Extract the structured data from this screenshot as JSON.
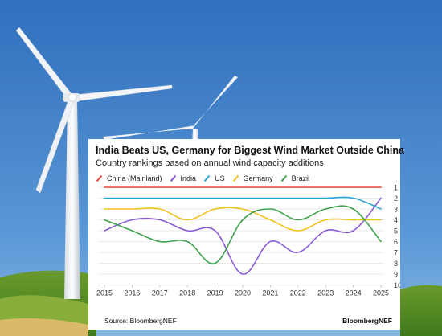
{
  "header": {
    "title": "India Beats US, Germany for Biggest Wind Market Outside China",
    "subtitle": "Country rankings based on annual wind capacity additions"
  },
  "footer": {
    "source": "Source: BloombergNEF",
    "brand": "BloombergNEF"
  },
  "chart_data": {
    "type": "line",
    "title": "India Beats US, Germany for Biggest Wind Market Outside China",
    "subtitle": "Country rankings based on annual wind capacity additions",
    "xlabel": "",
    "ylabel": "",
    "x": [
      2015,
      2016,
      2017,
      2018,
      2019,
      2020,
      2021,
      2022,
      2023,
      2024,
      2025
    ],
    "y_ticks": [
      1,
      2,
      3,
      4,
      5,
      6,
      7,
      8,
      9,
      10
    ],
    "ylim": [
      1,
      10
    ],
    "y_inverted": true,
    "y_axis_position": "right",
    "grid": true,
    "legend_position": "top",
    "series": [
      {
        "name": "China (Mainland)",
        "color": "#e8463a",
        "values": [
          1,
          1,
          1,
          1,
          1,
          1,
          1,
          1,
          1,
          1,
          1
        ]
      },
      {
        "name": "India",
        "color": "#8a5bd6",
        "values": [
          5,
          4,
          4,
          5,
          5,
          9,
          6,
          7,
          5,
          5,
          2
        ]
      },
      {
        "name": "US",
        "color": "#2ba3d9",
        "values": [
          2,
          2,
          2,
          2,
          2,
          2,
          2,
          2,
          2,
          2,
          3
        ]
      },
      {
        "name": "Germany",
        "color": "#f2c21b",
        "values": [
          3,
          3,
          3,
          4,
          3,
          3,
          4,
          5,
          4,
          4,
          4
        ]
      },
      {
        "name": "Brazil",
        "color": "#3fa34d",
        "values": [
          4,
          5,
          6,
          6,
          8,
          4,
          3,
          4,
          3,
          3,
          6
        ]
      }
    ]
  }
}
